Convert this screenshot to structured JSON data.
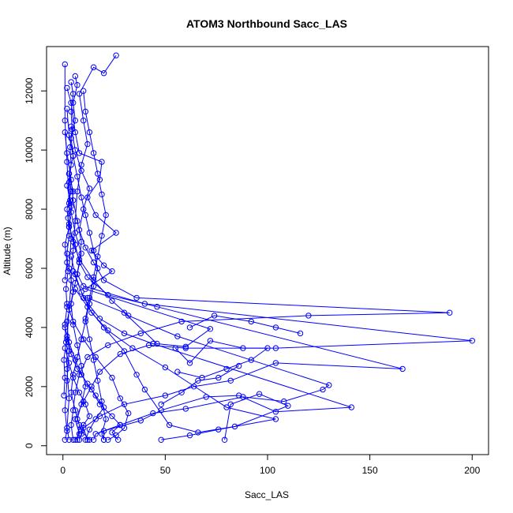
{
  "chart_data": {
    "type": "line",
    "title": "ATOM3 Northbound Sacc_LAS",
    "xlabel": "Sacc_LAS",
    "ylabel": "Altitude (m)",
    "xlim": [
      -8,
      208
    ],
    "ylim": [
      -300,
      13500
    ],
    "x_ticks": [
      0,
      50,
      100,
      150,
      200
    ],
    "y_ticks": [
      0,
      2000,
      4000,
      6000,
      8000,
      10000,
      12000
    ],
    "grid": false,
    "legend": "none",
    "color": "#0000ff",
    "marker": "open-circle",
    "series": [
      {
        "values": [
          [
            1,
            12900
          ],
          [
            1,
            11000
          ],
          [
            2,
            9600
          ],
          [
            3,
            8200
          ],
          [
            4,
            7000
          ],
          [
            3,
            6000
          ],
          [
            5,
            5200
          ],
          [
            2,
            4200
          ],
          [
            3,
            3200
          ],
          [
            2,
            2200
          ],
          [
            1,
            1200
          ],
          [
            2,
            500
          ],
          [
            1,
            200
          ]
        ]
      },
      {
        "values": [
          [
            26,
            13200
          ],
          [
            20,
            12600
          ],
          [
            15,
            12800
          ],
          [
            8,
            11900
          ],
          [
            10,
            11000
          ],
          [
            12,
            10200
          ],
          [
            9,
            9500
          ],
          [
            7,
            8600
          ],
          [
            6,
            7600
          ],
          [
            5,
            6600
          ],
          [
            4,
            5600
          ],
          [
            3,
            4600
          ],
          [
            2,
            3600
          ],
          [
            2,
            2600
          ],
          [
            3,
            1600
          ],
          [
            2,
            600
          ],
          [
            3,
            200
          ]
        ]
      },
      {
        "values": [
          [
            2,
            12100
          ],
          [
            4,
            11600
          ],
          [
            6,
            10600
          ],
          [
            8,
            9900
          ],
          [
            19,
            9600
          ],
          [
            18,
            9000
          ],
          [
            12,
            8400
          ],
          [
            16,
            7800
          ],
          [
            26,
            7200
          ],
          [
            14,
            6600
          ],
          [
            20,
            6100
          ],
          [
            24,
            5900
          ],
          [
            11,
            5300
          ],
          [
            72,
            3950
          ],
          [
            60,
            3350
          ],
          [
            46,
            3450
          ],
          [
            30,
            4500
          ],
          [
            12,
            5000
          ]
        ]
      },
      {
        "values": [
          [
            4,
            10800
          ],
          [
            6,
            10000
          ],
          [
            9,
            9300
          ],
          [
            13,
            8700
          ],
          [
            10,
            8000
          ],
          [
            8,
            7300
          ],
          [
            11,
            6700
          ],
          [
            15,
            6200
          ],
          [
            20,
            5600
          ],
          [
            36,
            5000
          ],
          [
            189,
            4500
          ],
          [
            120,
            4400
          ],
          [
            58,
            4200
          ],
          [
            38,
            3800
          ],
          [
            22,
            3400
          ],
          [
            12,
            3000
          ],
          [
            8,
            2400
          ],
          [
            6,
            1800
          ],
          [
            5,
            1200
          ],
          [
            4,
            700
          ],
          [
            5,
            200
          ]
        ]
      },
      {
        "values": [
          [
            3,
            9200
          ],
          [
            5,
            8600
          ],
          [
            4,
            7900
          ],
          [
            6,
            7200
          ],
          [
            9,
            6500
          ],
          [
            7,
            5800
          ],
          [
            10,
            5400
          ],
          [
            40,
            4800
          ],
          [
            200,
            3550
          ],
          [
            104,
            3300
          ],
          [
            60,
            3300
          ],
          [
            42,
            3400
          ],
          [
            28,
            3100
          ],
          [
            18,
            2500
          ],
          [
            14,
            2000
          ],
          [
            10,
            1500
          ],
          [
            6,
            900
          ],
          [
            8,
            400
          ],
          [
            6,
            200
          ]
        ]
      },
      {
        "values": [
          [
            2,
            8800
          ],
          [
            4,
            8100
          ],
          [
            3,
            7400
          ],
          [
            6,
            6800
          ],
          [
            8,
            6200
          ],
          [
            12,
            5700
          ],
          [
            22,
            5100
          ],
          [
            46,
            4700
          ],
          [
            166,
            2600
          ],
          [
            104,
            2800
          ],
          [
            82,
            2200
          ],
          [
            64,
            2000
          ],
          [
            50,
            1700
          ],
          [
            30,
            1400
          ],
          [
            18,
            1000
          ],
          [
            10,
            600
          ],
          [
            12,
            200
          ]
        ]
      },
      {
        "values": [
          [
            3,
            7500
          ],
          [
            5,
            6900
          ],
          [
            8,
            6300
          ],
          [
            15,
            5600
          ],
          [
            24,
            4900
          ],
          [
            32,
            4400
          ],
          [
            56,
            3700
          ],
          [
            130,
            2050
          ],
          [
            127,
            1900
          ],
          [
            108,
            1500
          ],
          [
            88,
            1650
          ],
          [
            60,
            1250
          ],
          [
            44,
            1100
          ],
          [
            28,
            700
          ],
          [
            16,
            400
          ],
          [
            15,
            200
          ]
        ]
      },
      {
        "values": [
          [
            4,
            6400
          ],
          [
            6,
            5800
          ],
          [
            10,
            5000
          ],
          [
            18,
            4300
          ],
          [
            30,
            3800
          ],
          [
            44,
            3450
          ],
          [
            141,
            1300
          ],
          [
            104,
            1150
          ],
          [
            86,
            1700
          ],
          [
            70,
            1650
          ],
          [
            48,
            1200
          ],
          [
            38,
            850
          ],
          [
            20,
            500
          ],
          [
            20,
            200
          ]
        ]
      },
      {
        "values": [
          [
            5,
            5900
          ],
          [
            9,
            5200
          ],
          [
            14,
            4500
          ],
          [
            22,
            3900
          ],
          [
            34,
            3300
          ],
          [
            50,
            2650
          ],
          [
            80,
            1300
          ],
          [
            104,
            900
          ],
          [
            76,
            550
          ],
          [
            62,
            350
          ],
          [
            48,
            200
          ]
        ]
      },
      {
        "values": [
          [
            6,
            5300
          ],
          [
            12,
            4700
          ],
          [
            20,
            4000
          ],
          [
            30,
            3200
          ],
          [
            36,
            2400
          ],
          [
            40,
            1900
          ],
          [
            52,
            700
          ],
          [
            66,
            450
          ],
          [
            84,
            650
          ],
          [
            110,
            1350
          ],
          [
            96,
            1750
          ],
          [
            82,
            1400
          ],
          [
            79,
            200
          ]
        ]
      },
      {
        "values": [
          [
            2,
            4800
          ],
          [
            5,
            4200
          ],
          [
            10,
            3600
          ],
          [
            16,
            3000
          ],
          [
            24,
            2300
          ],
          [
            28,
            1600
          ],
          [
            32,
            1100
          ],
          [
            30,
            600
          ],
          [
            26,
            350
          ],
          [
            22,
            200
          ]
        ]
      },
      {
        "values": [
          [
            1,
            4000
          ],
          [
            3,
            3500
          ],
          [
            6,
            2900
          ],
          [
            9,
            2400
          ],
          [
            14,
            1900
          ],
          [
            18,
            1400
          ],
          [
            24,
            1000
          ],
          [
            28,
            700
          ],
          [
            24,
            450
          ],
          [
            27,
            200
          ]
        ]
      },
      {
        "values": [
          [
            2,
            3700
          ],
          [
            4,
            3100
          ],
          [
            7,
            2600
          ],
          [
            12,
            2100
          ],
          [
            16,
            1700
          ],
          [
            20,
            1300
          ],
          [
            16,
            900
          ],
          [
            13,
            550
          ],
          [
            11,
            200
          ]
        ]
      },
      {
        "values": [
          [
            1,
            3300
          ],
          [
            3,
            2800
          ],
          [
            5,
            2300
          ],
          [
            8,
            1800
          ],
          [
            11,
            1400
          ],
          [
            13,
            1000
          ],
          [
            10,
            700
          ],
          [
            9,
            400
          ],
          [
            8,
            200
          ]
        ]
      },
      {
        "values": [
          [
            2,
            11400
          ],
          [
            3,
            10500
          ],
          [
            5,
            9800
          ],
          [
            7,
            9100
          ],
          [
            9,
            8400
          ],
          [
            11,
            7800
          ],
          [
            13,
            7200
          ],
          [
            15,
            6600
          ],
          [
            17,
            6000
          ],
          [
            15,
            5400
          ],
          [
            13,
            4800
          ],
          [
            11,
            4200
          ],
          [
            9,
            3600
          ],
          [
            7,
            3000
          ],
          [
            5,
            2400
          ],
          [
            4,
            1800
          ],
          [
            6,
            1200
          ],
          [
            8,
            700
          ],
          [
            7,
            200
          ]
        ]
      },
      {
        "values": [
          [
            1,
            10600
          ],
          [
            2,
            9900
          ],
          [
            4,
            9000
          ],
          [
            5,
            8300
          ],
          [
            7,
            7600
          ],
          [
            9,
            6900
          ],
          [
            8,
            6200
          ],
          [
            6,
            5500
          ],
          [
            4,
            4800
          ],
          [
            5,
            4100
          ],
          [
            7,
            3400
          ],
          [
            9,
            2700
          ],
          [
            11,
            2000
          ],
          [
            9,
            1400
          ],
          [
            7,
            900
          ],
          [
            9,
            500
          ],
          [
            13,
            200
          ]
        ]
      },
      {
        "values": [
          [
            55,
            3300
          ],
          [
            62,
            2800
          ],
          [
            72,
            3550
          ],
          [
            88,
            3300
          ],
          [
            100,
            3300
          ],
          [
            92,
            2900
          ],
          [
            80,
            2600
          ],
          [
            68,
            2300
          ],
          [
            56,
            2500
          ]
        ]
      },
      {
        "values": [
          [
            48,
            1400
          ],
          [
            58,
            1800
          ],
          [
            66,
            2200
          ],
          [
            76,
            2300
          ],
          [
            86,
            2700
          ]
        ]
      },
      {
        "values": [
          [
            62,
            4000
          ],
          [
            74,
            4400
          ],
          [
            92,
            4200
          ],
          [
            104,
            4000
          ],
          [
            116,
            3800
          ]
        ]
      },
      {
        "values": [
          [
            1,
            5600
          ],
          [
            2,
            6200
          ],
          [
            1,
            6800
          ],
          [
            3,
            7400
          ],
          [
            2,
            8000
          ],
          [
            4,
            8600
          ],
          [
            3,
            9200
          ],
          [
            5,
            9800
          ],
          [
            4,
            10400
          ],
          [
            6,
            11000
          ],
          [
            5,
            11600
          ],
          [
            7,
            12200
          ],
          [
            6,
            12500
          ]
        ]
      },
      {
        "values": [
          [
            0.5,
            1700
          ],
          [
            1,
            2300
          ],
          [
            0.5,
            2900
          ],
          [
            1.5,
            3500
          ],
          [
            1,
            4100
          ],
          [
            2,
            4700
          ],
          [
            1.5,
            5300
          ],
          [
            2.5,
            5900
          ],
          [
            2,
            6500
          ],
          [
            3,
            7100
          ],
          [
            2.5,
            7700
          ],
          [
            3.5,
            8300
          ],
          [
            3,
            8900
          ],
          [
            4,
            9500
          ],
          [
            3.5,
            10100
          ],
          [
            4.5,
            10700
          ],
          [
            4,
            11300
          ],
          [
            5,
            11900
          ],
          [
            4,
            12300
          ]
        ]
      },
      {
        "values": [
          [
            10,
            12000
          ],
          [
            11,
            11300
          ],
          [
            13,
            10600
          ],
          [
            15,
            9900
          ],
          [
            17,
            9200
          ],
          [
            19,
            8500
          ],
          [
            21,
            7800
          ],
          [
            19,
            7100
          ],
          [
            17,
            6400
          ],
          [
            15,
            5700
          ],
          [
            13,
            5000
          ],
          [
            11,
            4300
          ],
          [
            13,
            3600
          ],
          [
            15,
            2900
          ],
          [
            17,
            2200
          ],
          [
            19,
            1500
          ],
          [
            21,
            900
          ],
          [
            19,
            400
          ],
          [
            20,
            200
          ]
        ]
      }
    ]
  }
}
